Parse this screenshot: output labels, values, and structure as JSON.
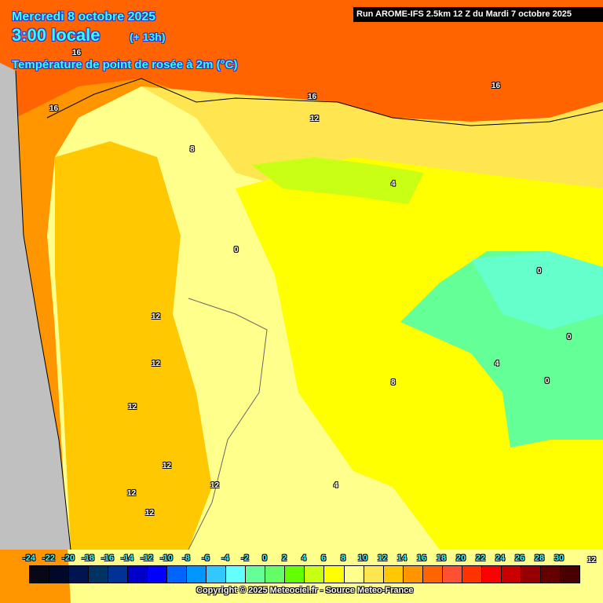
{
  "header": {
    "date": "Mercredi 8 octobre 2025",
    "time": "3:00 locale",
    "lead": "(+ 13h)",
    "variable": "Température de point de rosée à 2m (°C)",
    "run": "Run AROME-IFS 2.5km 12 Z du Mardi 7 octobre 2025"
  },
  "contour_labels": [
    {
      "text": "16",
      "lon_hint": "north-west coast"
    },
    {
      "text": "16",
      "lon_hint": "west"
    },
    {
      "text": "16",
      "lon_hint": "north"
    },
    {
      "text": "16",
      "lon_hint": "north-east"
    },
    {
      "text": "12",
      "lon_hint": "north"
    },
    {
      "text": "8",
      "lon_hint": "north-west"
    },
    {
      "text": "4",
      "lon_hint": "north-centre"
    },
    {
      "text": "0",
      "lon_hint": "centre-west"
    },
    {
      "text": "0",
      "lon_hint": "east"
    },
    {
      "text": "0",
      "lon_hint": "east"
    },
    {
      "text": "0",
      "lon_hint": "east"
    },
    {
      "text": "12",
      "lon_hint": "west"
    },
    {
      "text": "12",
      "lon_hint": "west"
    },
    {
      "text": "12",
      "lon_hint": "west"
    },
    {
      "text": "12",
      "lon_hint": "south-west"
    },
    {
      "text": "12",
      "lon_hint": "south-west"
    },
    {
      "text": "12",
      "lon_hint": "south-west"
    },
    {
      "text": "12",
      "lon_hint": "south-west"
    },
    {
      "text": "8",
      "lon_hint": "centre"
    },
    {
      "text": "4",
      "lon_hint": "east"
    },
    {
      "text": "4",
      "lon_hint": "south"
    },
    {
      "text": "12",
      "lon_hint": "south-east"
    }
  ],
  "legend": {
    "ticks": [
      "-24",
      "-22",
      "-20",
      "-18",
      "-16",
      "-14",
      "-12",
      "-10",
      "-8",
      "-6",
      "-4",
      "-2",
      "0",
      "2",
      "4",
      "6",
      "8",
      "10",
      "12",
      "14",
      "16",
      "18",
      "20",
      "22",
      "24",
      "26",
      "28",
      "30"
    ],
    "colors": [
      "#070718",
      "#000a28",
      "#001450",
      "#003264",
      "#003296",
      "#0000c8",
      "#0000ff",
      "#0064ff",
      "#0096ff",
      "#32c8ff",
      "#64ffff",
      "#64ff96",
      "#64ff64",
      "#64ff00",
      "#c8ff14",
      "#ffff00",
      "#ffff8c",
      "#ffe650",
      "#ffc800",
      "#ff9600",
      "#ff6400",
      "#ff5032",
      "#ff3200",
      "#ff0000",
      "#c80000",
      "#960000",
      "#640000",
      "#4b0000"
    ]
  },
  "copyright": "Copyright © 2025 Meteociel.fr - Source Meteo-France"
}
